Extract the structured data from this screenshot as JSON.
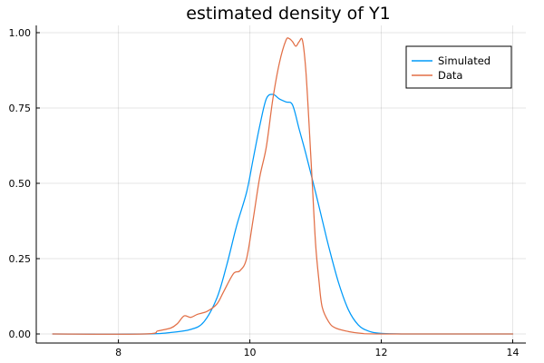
{
  "chart_data": {
    "type": "line",
    "title": "estimated density of Y1",
    "xlabel": "",
    "ylabel": "",
    "xlim": [
      7,
      14
    ],
    "ylim": [
      0,
      1.0
    ],
    "xticks": [
      8,
      10,
      12,
      14
    ],
    "xtick_labels": [
      "8",
      "10",
      "12",
      "14"
    ],
    "yticks": [
      0,
      0.25,
      0.5,
      0.75,
      1.0
    ],
    "ytick_labels": [
      "0.00",
      "0.25",
      "0.50",
      "0.75",
      "1.00"
    ],
    "grid": true,
    "legend_position": "top-right",
    "series": [
      {
        "name": "Simulated",
        "color": "#009af9",
        "x": [
          7.0,
          8.4,
          8.8,
          9.1,
          9.3,
          9.5,
          9.65,
          9.8,
          9.95,
          10.05,
          10.15,
          10.25,
          10.35,
          10.45,
          10.55,
          10.65,
          10.75,
          10.85,
          11.0,
          11.1,
          11.2,
          11.35,
          11.5,
          11.65,
          11.8,
          12.0,
          12.5,
          14.0
        ],
        "y": [
          0.0,
          0.0,
          0.005,
          0.015,
          0.04,
          0.12,
          0.23,
          0.36,
          0.47,
          0.58,
          0.69,
          0.78,
          0.795,
          0.78,
          0.77,
          0.76,
          0.68,
          0.6,
          0.47,
          0.38,
          0.29,
          0.17,
          0.08,
          0.03,
          0.01,
          0.002,
          0.0,
          0.0
        ]
      },
      {
        "name": "Data",
        "color": "#e26f46",
        "x": [
          7.0,
          8.4,
          8.6,
          8.8,
          8.9,
          9.0,
          9.1,
          9.2,
          9.35,
          9.5,
          9.6,
          9.75,
          9.85,
          9.95,
          10.05,
          10.15,
          10.25,
          10.35,
          10.45,
          10.55,
          10.6,
          10.65,
          10.7,
          10.75,
          10.8,
          10.85,
          10.9,
          10.95,
          11.0,
          11.05,
          11.1,
          11.2,
          11.3,
          11.5,
          11.7,
          12.0,
          14.0
        ],
        "y": [
          0.0,
          0.0,
          0.01,
          0.02,
          0.035,
          0.06,
          0.055,
          0.065,
          0.075,
          0.1,
          0.14,
          0.2,
          0.21,
          0.25,
          0.38,
          0.52,
          0.62,
          0.78,
          0.9,
          0.975,
          0.98,
          0.97,
          0.955,
          0.97,
          0.975,
          0.88,
          0.7,
          0.5,
          0.3,
          0.18,
          0.09,
          0.04,
          0.02,
          0.008,
          0.002,
          0.0,
          0.0
        ]
      }
    ]
  }
}
